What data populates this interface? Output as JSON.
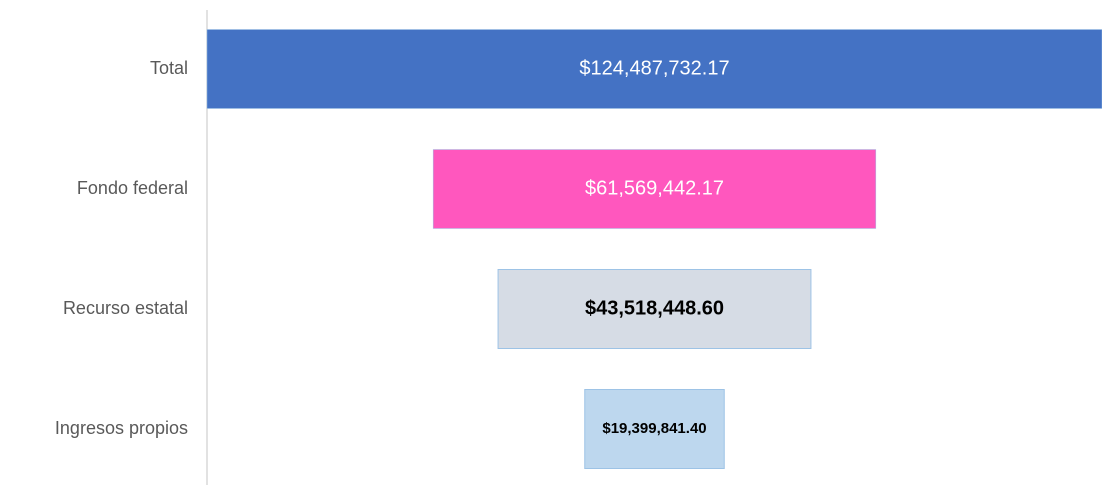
{
  "chart_data": {
    "type": "funnel",
    "categories": [
      "Total",
      "Fondo federal",
      "Recurso estatal",
      "Ingresos propios"
    ],
    "values": [
      124487732.17,
      61569442.17,
      43518448.6,
      19399841.4
    ],
    "value_labels": [
      "$124,487,732.17",
      "$61,569,442.17",
      "$43,518,448.60",
      "$19,399,841.40"
    ],
    "colors": [
      "#4472c4",
      "#ff57be",
      "#d6dce5",
      "#bdd7ee"
    ]
  }
}
